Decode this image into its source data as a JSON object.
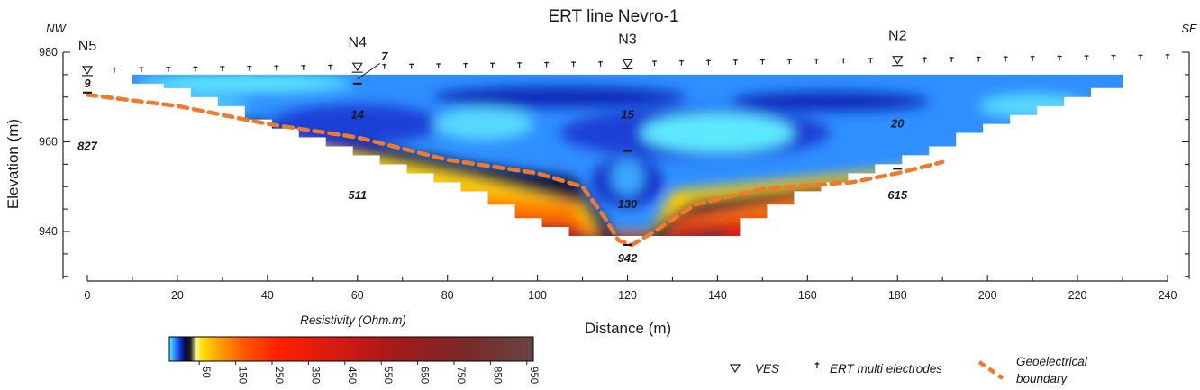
{
  "chart_data": {
    "type": "heatmap",
    "title": "ERT line Nevro-1",
    "xlabel": "Distance (m)",
    "ylabel": "Elevation (m)",
    "xlim": [
      0,
      240
    ],
    "ylim": [
      930,
      980
    ],
    "x_ticks": [
      0,
      20,
      40,
      60,
      80,
      100,
      120,
      140,
      160,
      180,
      200,
      220,
      240
    ],
    "y_ticks": [
      940,
      960,
      980
    ],
    "direction_labels": {
      "left": "NW",
      "right": "SE"
    },
    "grid": false,
    "ves": [
      {
        "name": "N5",
        "x": 0
      },
      {
        "name": "N4",
        "x": 60
      },
      {
        "name": "N3",
        "x": 120
      },
      {
        "name": "N2",
        "x": 180
      }
    ],
    "electrodes": {
      "first_x": 0,
      "spacing": 6,
      "count": 41
    },
    "resistivity_labels": [
      {
        "text": "9",
        "x": 0,
        "y": 973
      },
      {
        "text": "827",
        "x": 0,
        "y": 959
      },
      {
        "text": "7",
        "x": 66,
        "y": 979
      },
      {
        "text": "14",
        "x": 60,
        "y": 966
      },
      {
        "text": "511",
        "x": 60,
        "y": 948
      },
      {
        "text": "15",
        "x": 120,
        "y": 966
      },
      {
        "text": "130",
        "x": 120,
        "y": 946
      },
      {
        "text": "942",
        "x": 120,
        "y": 934
      },
      {
        "text": "20",
        "x": 180,
        "y": 964
      },
      {
        "text": "615",
        "x": 180,
        "y": 948
      }
    ],
    "geoelectrical_boundary": [
      [
        0,
        970.5
      ],
      [
        20,
        968
      ],
      [
        40,
        964
      ],
      [
        60,
        961
      ],
      [
        80,
        956
      ],
      [
        100,
        953
      ],
      [
        110,
        950
      ],
      [
        115,
        943
      ],
      [
        118,
        938
      ],
      [
        121,
        937
      ],
      [
        126,
        940
      ],
      [
        135,
        946
      ],
      [
        150,
        949.5
      ],
      [
        170,
        951
      ],
      [
        180,
        953
      ],
      [
        190,
        955.5
      ]
    ],
    "colorbar": {
      "title": "Resistivity (Ohm.m)",
      "ticks": [
        "50",
        "150",
        "250",
        "350",
        "450",
        "550",
        "650",
        "750",
        "850",
        "950"
      ],
      "colors": [
        "#5ff0ff",
        "#2f9fff",
        "#1c4fe6",
        "#0f1fa8",
        "#070735",
        "#202020",
        "#f8f29a",
        "#ffe000",
        "#ffa800",
        "#ff5a00",
        "#ff2000",
        "#d81a10",
        "#b01818",
        "#902020",
        "#7a2a2a",
        "#6e3838",
        "#6a4545"
      ]
    },
    "legend": {
      "placement": "bottom-right",
      "items": [
        {
          "symbol": "ves",
          "label": "VES"
        },
        {
          "symbol": "electrode",
          "label": "ERT multi electrodes"
        },
        {
          "symbol": "boundary",
          "label": "Geoelectrical boundary"
        }
      ]
    }
  }
}
